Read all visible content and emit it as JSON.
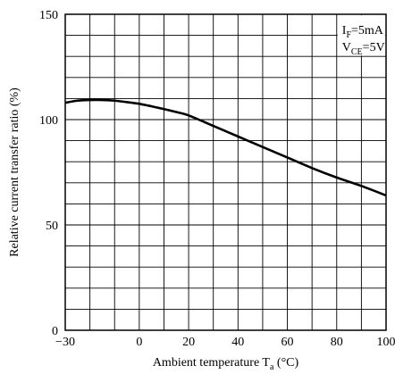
{
  "chart_data": {
    "type": "line",
    "xlabel_main": "Ambient temperature T",
    "xlabel_sub": "a",
    "xlabel_unit": " (°C)",
    "ylabel": "Relative current transfer ratio (%)",
    "xlim": [
      -30,
      100
    ],
    "ylim": [
      0,
      150
    ],
    "grid": true,
    "x_major_ticks": [
      -30,
      0,
      20,
      40,
      60,
      80,
      100
    ],
    "x_tick_labels": [
      "−30",
      "0",
      "20",
      "40",
      "60",
      "80",
      "100"
    ],
    "y_major_ticks": [
      0,
      50,
      100,
      150
    ],
    "y_tick_labels": [
      "0",
      "50",
      "100",
      "150"
    ],
    "x_grid_step": 10,
    "y_grid_step": 10,
    "conditions": {
      "line1_main": "I",
      "line1_sub": "F",
      "line1_value": "=5mA",
      "line2_main": "V",
      "line2_sub": "CE",
      "line2_value": "=5V",
      "placement": "top-right"
    },
    "series": [
      {
        "x": [
          -30,
          -25,
          -20,
          -15,
          -10,
          -5,
          0,
          5,
          10,
          15,
          20,
          30,
          40,
          50,
          60,
          70,
          80,
          90,
          100
        ],
        "values": [
          108,
          109,
          109.3,
          109.3,
          109,
          108.3,
          107.5,
          106.3,
          105,
          103.6,
          102,
          97,
          92,
          87,
          82,
          77,
          72.5,
          68.5,
          64
        ]
      }
    ]
  }
}
